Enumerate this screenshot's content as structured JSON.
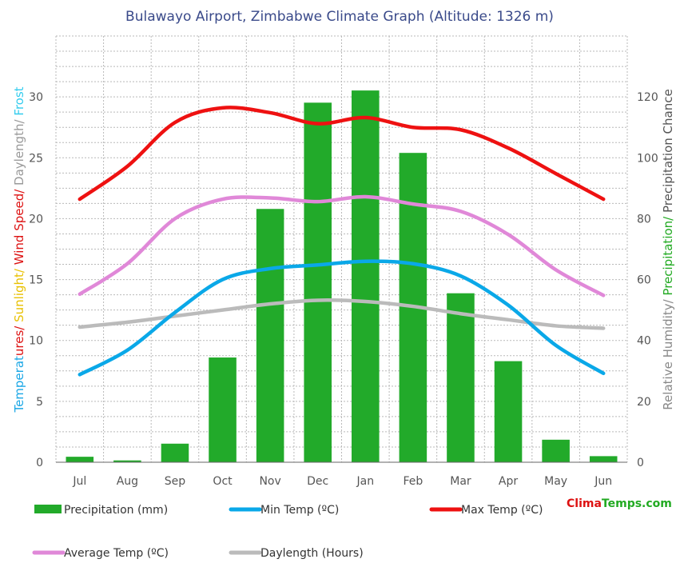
{
  "chart_data": {
    "type": "bar",
    "title": "Bulawayo Airport, Zimbabwe Climate Graph (Altitude: 1326 m)",
    "categories": [
      "Jul",
      "Aug",
      "Sep",
      "Oct",
      "Nov",
      "Dec",
      "Jan",
      "Feb",
      "Mar",
      "Apr",
      "May",
      "Jun"
    ],
    "y_left": {
      "ticks": [
        0,
        5,
        10,
        15,
        20,
        25,
        30
      ],
      "range": [
        0,
        35
      ],
      "label_parts": [
        {
          "text": "Temperat",
          "color": "#1aa7e6"
        },
        {
          "text": "ures/",
          "color": "#dd1111"
        },
        {
          "text": " Sunlight/",
          "color": "#e8c000"
        },
        {
          "text": " Wind Speed/",
          "color": "#dd1111"
        },
        {
          "text": " Daylength/",
          "color": "#999999"
        },
        {
          "text": " Frost",
          "color": "#33ccee"
        }
      ]
    },
    "y_right": {
      "ticks": [
        0,
        20,
        40,
        60,
        80,
        100,
        120
      ],
      "range": [
        0,
        140
      ],
      "label_parts": [
        {
          "text": "Relative Humidity/",
          "color": "#888888"
        },
        {
          "text": " Precipitation/",
          "color": "#22aa22"
        },
        {
          "text": " Precipitation Chance",
          "color": "#555555"
        }
      ]
    },
    "grid": true,
    "series": [
      {
        "name": "Precipitation (mm)",
        "kind": "bar",
        "axis": "right",
        "color": "#22aa2a",
        "values": [
          1.8,
          0.6,
          6.1,
          34.4,
          83.2,
          118.1,
          122.1,
          101.6,
          55.5,
          33.2,
          7.4,
          2.0
        ]
      },
      {
        "name": "Min Temp (ºC)",
        "kind": "line",
        "axis": "left",
        "color": "#0aa8e8",
        "values": [
          7.2,
          9.2,
          12.3,
          15.0,
          15.9,
          16.2,
          16.5,
          16.3,
          15.3,
          12.9,
          9.6,
          7.3
        ]
      },
      {
        "name": "Max Temp (ºC)",
        "kind": "line",
        "axis": "left",
        "color": "#ee1111",
        "values": [
          21.6,
          24.3,
          27.9,
          29.1,
          28.7,
          27.8,
          28.3,
          27.5,
          27.3,
          25.8,
          23.7,
          21.6
        ]
      },
      {
        "name": "Average Temp (ºC)",
        "kind": "line",
        "axis": "left",
        "color": "#e088d8",
        "values": [
          13.8,
          16.3,
          20.0,
          21.6,
          21.7,
          21.4,
          21.8,
          21.2,
          20.6,
          18.7,
          15.8,
          13.7
        ]
      },
      {
        "name": "Daylength (Hours)",
        "kind": "line",
        "axis": "left",
        "color": "#bbbbbb",
        "values": [
          11.1,
          11.5,
          12.0,
          12.5,
          13.0,
          13.3,
          13.2,
          12.8,
          12.2,
          11.7,
          11.2,
          11.0
        ]
      }
    ],
    "legend": "bottom"
  },
  "branding": {
    "part1": "Clima",
    "part2": "Temps.com"
  }
}
